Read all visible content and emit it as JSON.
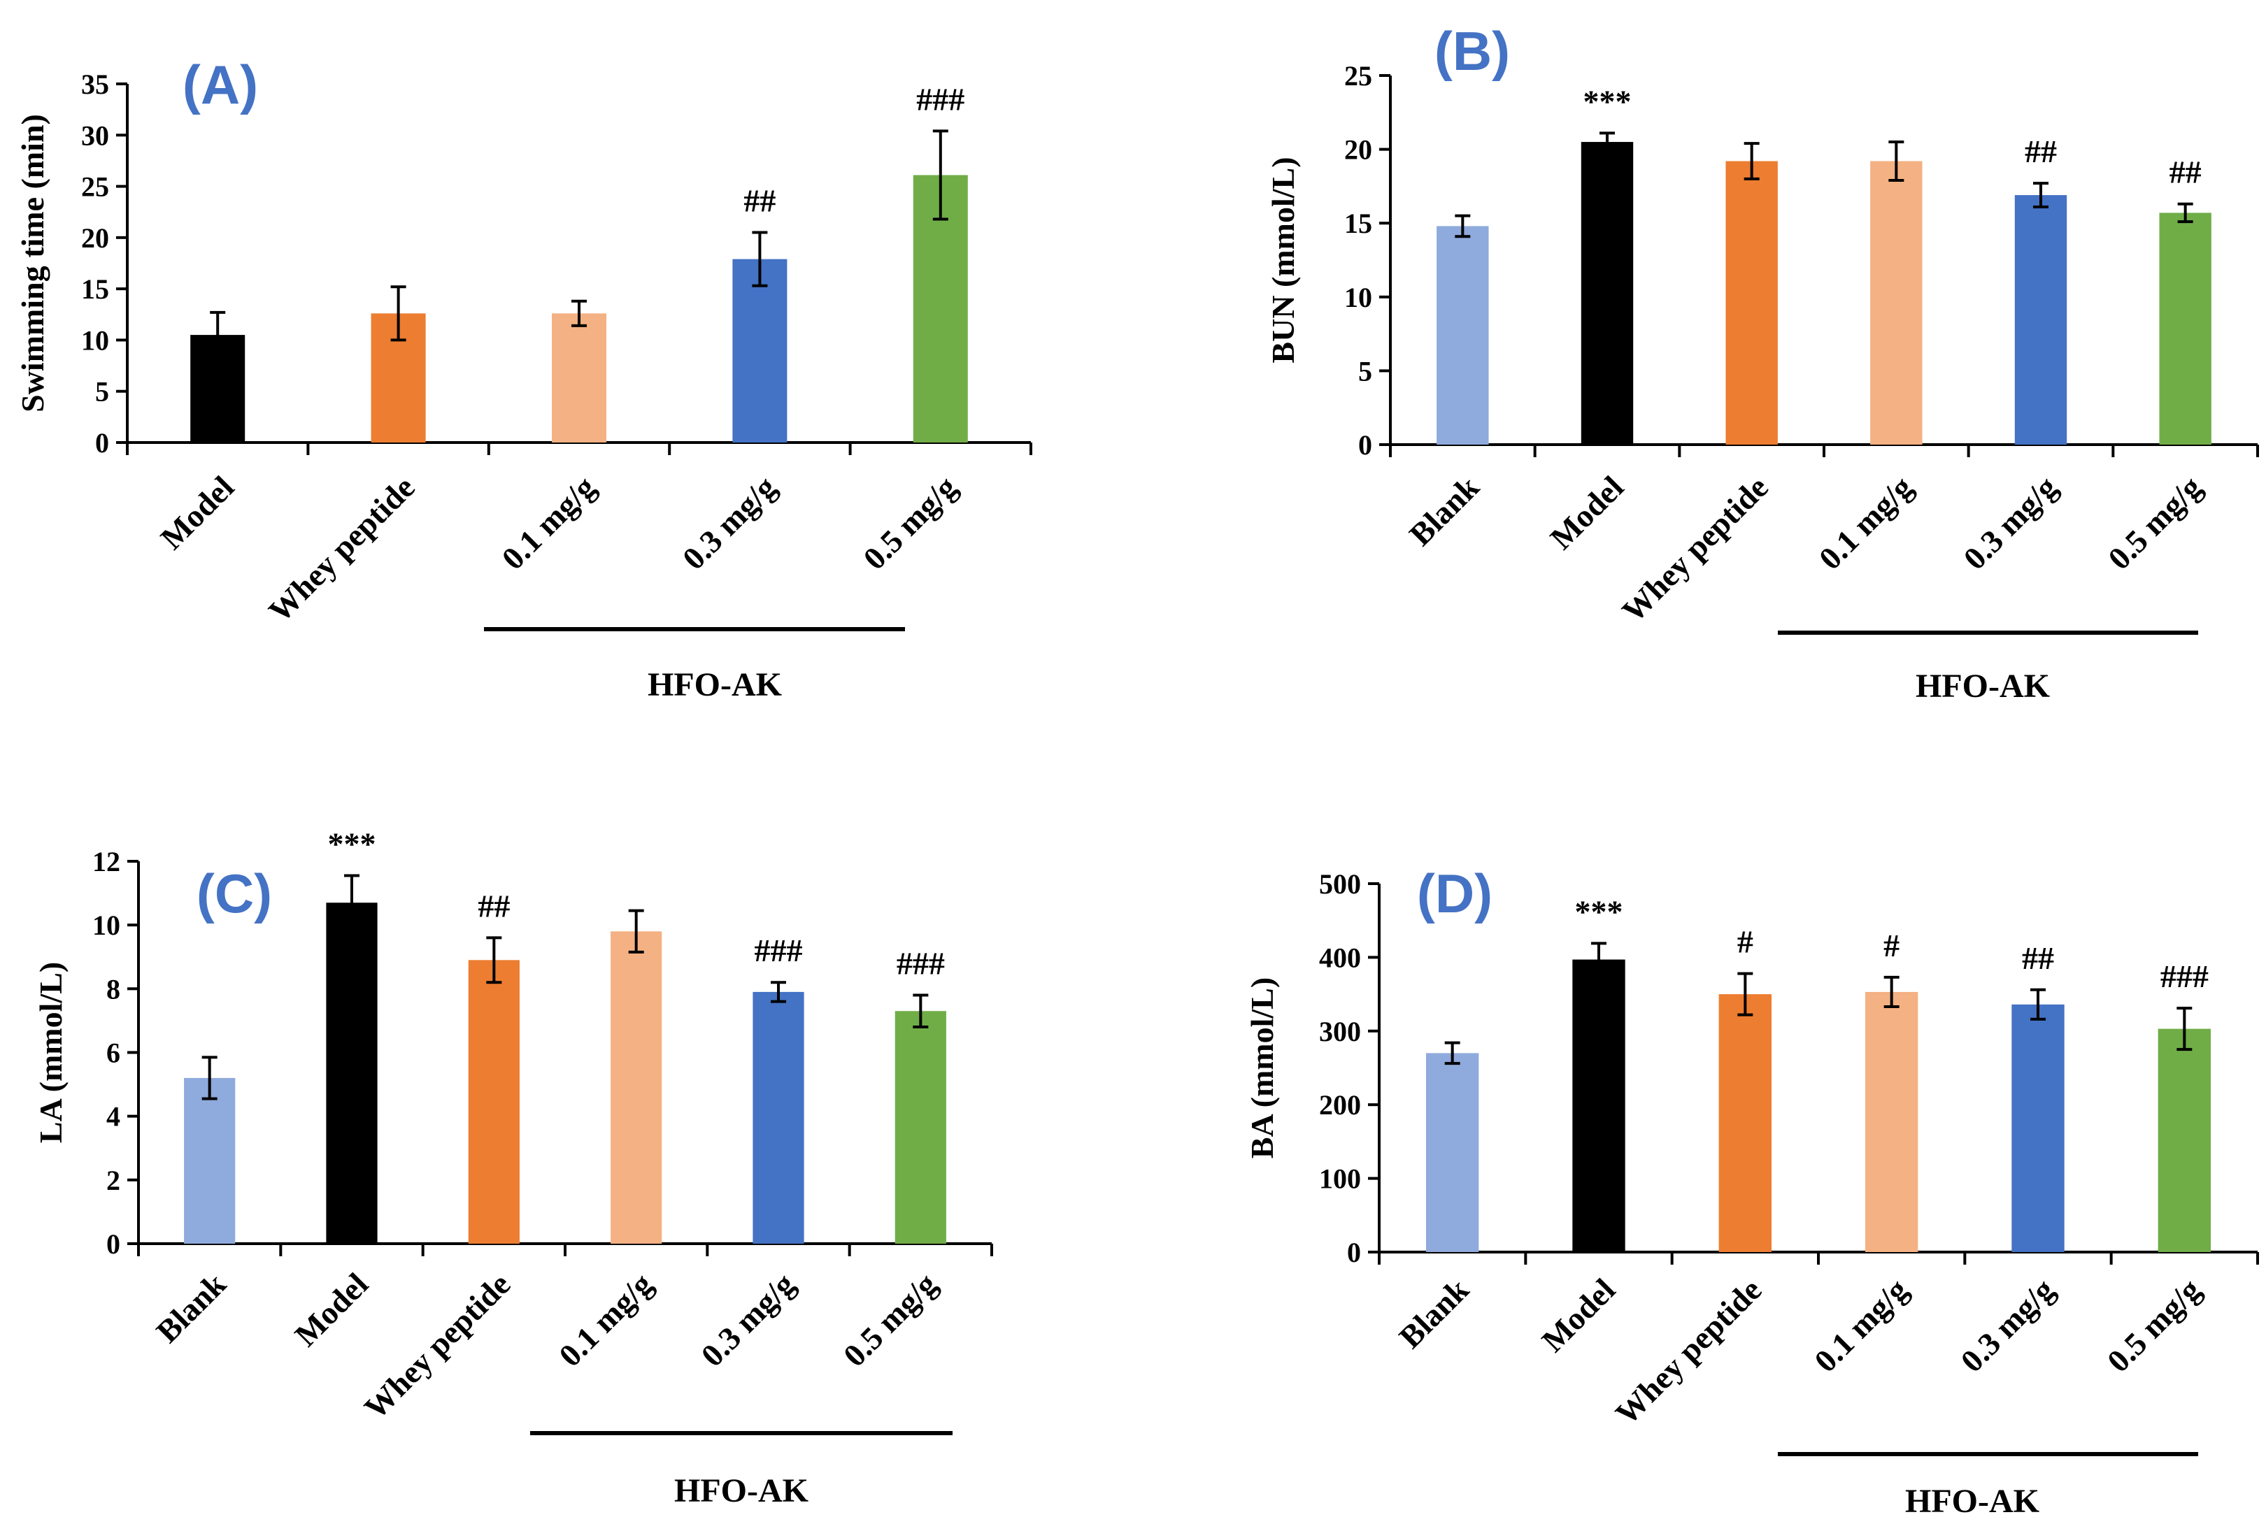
{
  "chart_data": [
    {
      "type": "bar",
      "panel": "(A)",
      "ylabel": "Swimming time (min)",
      "ylim": [
        0,
        35
      ],
      "yticks": [
        0,
        5,
        10,
        15,
        20,
        25,
        30,
        35
      ],
      "categories": [
        "Model",
        "Whey peptide",
        "0.1 mg/g",
        "0.3 mg/g",
        "0.5 mg/g"
      ],
      "values": [
        10.5,
        12.6,
        12.6,
        17.9,
        26.1
      ],
      "errors": [
        2.2,
        2.6,
        1.2,
        2.6,
        4.3
      ],
      "significance": [
        "",
        "",
        "",
        "##",
        "###"
      ],
      "colors": [
        "#000000",
        "#ED7D31",
        "#F4B183",
        "#4472C4",
        "#70AD47"
      ],
      "group": {
        "label": "HFO-AK",
        "from": 2,
        "to": 4
      }
    },
    {
      "type": "bar",
      "panel": "(B)",
      "ylabel": "BUN (mmol/L)",
      "ylim": [
        0,
        25
      ],
      "yticks": [
        0,
        5,
        10,
        15,
        20,
        25
      ],
      "categories": [
        "Blank",
        "Model",
        "Whey peptide",
        "0.1 mg/g",
        "0.3 mg/g",
        "0.5 mg/g"
      ],
      "values": [
        14.8,
        20.5,
        19.2,
        19.2,
        16.9,
        15.7
      ],
      "errors": [
        0.7,
        0.6,
        1.2,
        1.3,
        0.8,
        0.6
      ],
      "significance": [
        "",
        "***",
        "",
        "",
        "##",
        "##"
      ],
      "colors": [
        "#8FAADC",
        "#000000",
        "#ED7D31",
        "#F4B183",
        "#4472C4",
        "#70AD47"
      ],
      "group": {
        "label": "HFO-AK",
        "from": 3,
        "to": 5
      }
    },
    {
      "type": "bar",
      "panel": "(C)",
      "ylabel": "LA (mmol/L)",
      "ylim": [
        0,
        12
      ],
      "yticks": [
        0,
        2,
        4,
        6,
        8,
        10,
        12
      ],
      "categories": [
        "Blank",
        "Model",
        "Whey peptide",
        "0.1 mg/g",
        "0.3 mg/g",
        "0.5 mg/g"
      ],
      "values": [
        5.2,
        10.7,
        8.9,
        9.8,
        7.9,
        7.3
      ],
      "errors": [
        0.65,
        0.85,
        0.7,
        0.65,
        0.3,
        0.5
      ],
      "significance": [
        "",
        "***",
        "##",
        "",
        "###",
        "###"
      ],
      "colors": [
        "#8FAADC",
        "#000000",
        "#ED7D31",
        "#F4B183",
        "#4472C4",
        "#70AD47"
      ],
      "group": {
        "label": "HFO-AK",
        "from": 3,
        "to": 5
      }
    },
    {
      "type": "bar",
      "panel": "(D)",
      "ylabel": "BA (mmol/L)",
      "ylim": [
        0,
        500
      ],
      "yticks": [
        0,
        100,
        200,
        300,
        400,
        500
      ],
      "categories": [
        "Blank",
        "Model",
        "Whey peptide",
        "0.1 mg/g",
        "0.3 mg/g",
        "0.5 mg/g"
      ],
      "values": [
        270,
        397,
        350,
        353,
        336,
        303
      ],
      "errors": [
        14,
        22,
        28,
        20,
        20,
        28
      ],
      "significance": [
        "",
        "***",
        "#",
        "#",
        "##",
        "###"
      ],
      "colors": [
        "#8FAADC",
        "#000000",
        "#ED7D31",
        "#F4B183",
        "#4472C4",
        "#70AD47"
      ],
      "group": {
        "label": "HFO-AK",
        "from": 3,
        "to": 5
      }
    }
  ]
}
